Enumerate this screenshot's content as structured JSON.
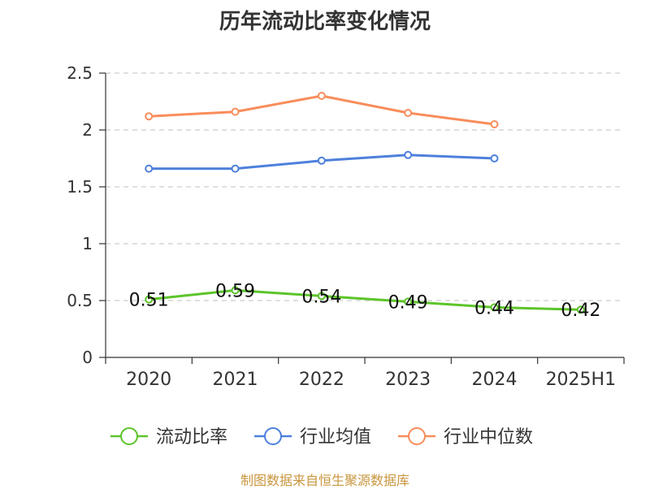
{
  "chart_data": {
    "type": "line",
    "title": "历年流动比率变化情况",
    "categories": [
      "2020",
      "2021",
      "2022",
      "2023",
      "2024",
      "2025H1"
    ],
    "ylim": [
      0,
      2.5
    ],
    "y_ticks": [
      "0",
      "0.5",
      "1",
      "1.5",
      "2",
      "2.5"
    ],
    "grid": true,
    "legend_position": "bottom",
    "series": [
      {
        "name": "流动比率",
        "color": "#5cc42a",
        "values": [
          0.51,
          0.59,
          0.54,
          0.49,
          0.44,
          0.42
        ],
        "labels": [
          "0.51",
          "0.59",
          "0.54",
          "0.49",
          "0.44",
          "0.42"
        ]
      },
      {
        "name": "行业均值",
        "color": "#4e80dc",
        "values": [
          1.66,
          1.66,
          1.73,
          1.78,
          1.75,
          null
        ]
      },
      {
        "name": "行业中位数",
        "color": "#f88d5b",
        "values": [
          2.12,
          2.16,
          2.3,
          2.15,
          2.05,
          null
        ]
      }
    ]
  },
  "source": "制图数据来自恒生聚源数据库"
}
